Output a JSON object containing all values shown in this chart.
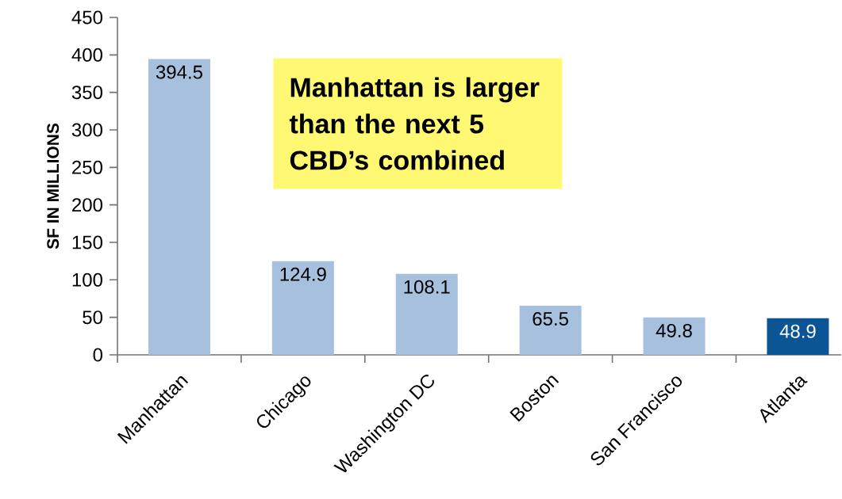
{
  "chart_data": {
    "type": "bar",
    "ylabel": "SF IN MILLIONS",
    "categories": [
      "Manhattan",
      "Chicago",
      "Washington DC",
      "Boston",
      "San Francisco",
      "Atlanta"
    ],
    "values": [
      394.5,
      124.9,
      108.1,
      65.5,
      49.8,
      48.9
    ],
    "colors": [
      "#a7c0de",
      "#a7c0de",
      "#a7c0de",
      "#a7c0de",
      "#a7c0de",
      "#0b5595"
    ],
    "ylim": [
      0,
      450
    ],
    "yticks": [
      0,
      50,
      100,
      150,
      200,
      250,
      300,
      350,
      400,
      450
    ],
    "data_labels": true,
    "annotations": [
      "Manhattan is larger than the next 5 CBD’s combined"
    ]
  }
}
